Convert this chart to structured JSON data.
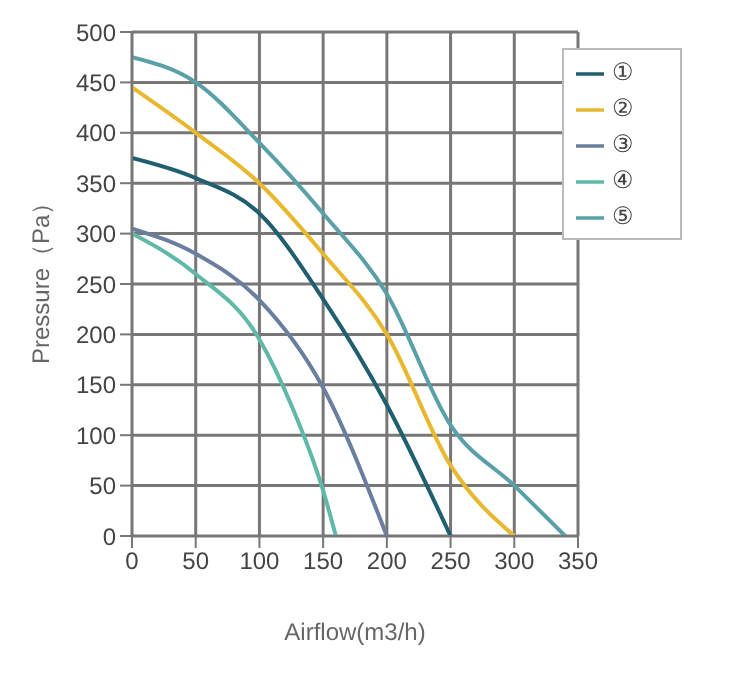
{
  "chart_data": {
    "type": "line",
    "xlabel": "Airflow(m3/h)",
    "ylabel": "Pressure（Pa）",
    "xlim": [
      0,
      350
    ],
    "xticks": [
      0,
      50,
      100,
      150,
      200,
      250,
      300,
      350
    ],
    "ylim": [
      0,
      500
    ],
    "yticks": [
      0,
      50,
      100,
      150,
      200,
      250,
      300,
      350,
      400,
      450,
      500
    ],
    "grid": true,
    "legend": "top right",
    "marker": "none",
    "line_style": "solid",
    "series": [
      {
        "name": "①",
        "color": "#1f5f6f",
        "x": [
          0,
          50,
          100,
          150,
          200,
          250
        ],
        "values": [
          375,
          355,
          320,
          235,
          130,
          0
        ]
      },
      {
        "name": "②",
        "color": "#e8b830",
        "x": [
          0,
          50,
          100,
          150,
          200,
          250,
          300
        ],
        "values": [
          445,
          400,
          350,
          280,
          200,
          70,
          0
        ]
      },
      {
        "name": "③",
        "color": "#6a7fa0",
        "x": [
          0,
          50,
          100,
          150,
          200
        ],
        "values": [
          305,
          280,
          234,
          147,
          0
        ]
      },
      {
        "name": "④",
        "color": "#5fb8a8",
        "x": [
          0,
          50,
          100,
          125,
          150,
          160
        ],
        "values": [
          300,
          260,
          195,
          130,
          45,
          0
        ]
      },
      {
        "name": "⑤",
        "color": "#5aa0a8",
        "x": [
          0,
          50,
          100,
          150,
          200,
          250,
          300,
          340
        ],
        "values": [
          475,
          450,
          390,
          320,
          240,
          110,
          50,
          0
        ]
      }
    ]
  }
}
